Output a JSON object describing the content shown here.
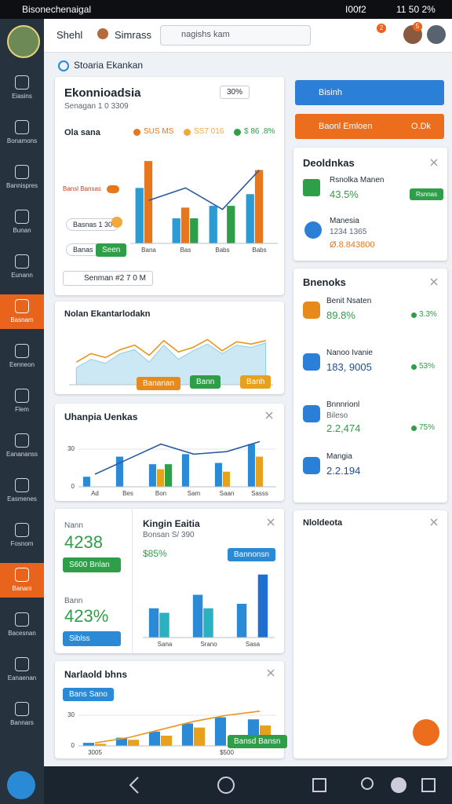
{
  "status_bar": {
    "app": "Bisonechenaigal",
    "battery": "I00f2",
    "time": "11 50 2%"
  },
  "header": {
    "title": "Shehl",
    "user": "Simrass",
    "search": "nagishs kam",
    "badges": [
      "2",
      "5"
    ]
  },
  "breadcrumb": "Stoaria Ekankan",
  "sidebar": [
    {
      "label": "Eiasins"
    },
    {
      "label": "Bonamons"
    },
    {
      "label": "Bannispres"
    },
    {
      "label": "Bunan"
    },
    {
      "label": "Eunann"
    },
    {
      "label": "Basnam",
      "active": true
    },
    {
      "label": "Eenneon"
    },
    {
      "label": "Flem"
    },
    {
      "label": "Eanananss"
    },
    {
      "label": "Easmenes"
    },
    {
      "label": "Fosnom"
    },
    {
      "label": "Banani",
      "active": true
    },
    {
      "label": "Bacesnan"
    },
    {
      "label": "Eanaenan"
    },
    {
      "label": "Bannars"
    }
  ],
  "card_a": {
    "title": "Ekonnioadsia",
    "subtitle": "Senagan 1 0 3309",
    "badge": "30%",
    "legend_title": "Ola sana",
    "legend": [
      {
        "label": "SUS MS",
        "color": "#e8761c"
      },
      {
        "label": "SS7 016",
        "color": "#f2a93b"
      },
      {
        "label": "$ 86 .8%",
        "color": "#2e9e48"
      }
    ],
    "rows": [
      "Bansl Bansas",
      "Basnas 1 30",
      "Banas"
    ],
    "row_button": "Seen",
    "footer": "Senman #2 7 0 M",
    "chart": {
      "type": "bar",
      "ylim": [
        0,
        100
      ],
      "categories": [
        "Bana",
        "Bas",
        "Babs",
        "Babs"
      ],
      "series": [
        {
          "color": "#2b9bd6",
          "values": [
            62,
            28,
            42,
            55
          ]
        },
        {
          "color": "#e8761c",
          "values": [
            92,
            40,
            0,
            82
          ]
        },
        {
          "color": "#2e9e48",
          "values": [
            0,
            28,
            42,
            0
          ]
        }
      ],
      "line": {
        "color": "#2c5aa0",
        "values": [
          48,
          62,
          38,
          82
        ]
      }
    }
  },
  "card_b": {
    "title": "Nolan Ekantarlodakn",
    "buttons": [
      "Bananan",
      "Bann",
      "Banh"
    ],
    "chart": {
      "type": "area",
      "ylim": [
        0,
        100
      ],
      "series": [
        {
          "color": "#8fcde8",
          "values": [
            30,
            45,
            38,
            55,
            62,
            40,
            70,
            45,
            60,
            72,
            55,
            70,
            66,
            74
          ]
        }
      ],
      "line": {
        "color": "#e8961c",
        "values": [
          40,
          55,
          48,
          62,
          70,
          52,
          78,
          58,
          66,
          80,
          60,
          76,
          72,
          78
        ]
      }
    }
  },
  "card_c": {
    "title": "Uhanpia Uenkas",
    "chart": {
      "type": "bar",
      "ylim": [
        0,
        40
      ],
      "yticks": [
        0,
        30
      ],
      "categories": [
        "Ad",
        "Bes",
        "Bon",
        "Sam",
        "Saan",
        "Sasss"
      ],
      "series": [
        {
          "color": "#2b8ad6",
          "values": [
            8,
            24,
            18,
            26,
            19,
            34
          ]
        },
        {
          "color": "#e8a11c",
          "values": [
            0,
            0,
            14,
            0,
            12,
            24
          ]
        },
        {
          "color": "#2e9e48",
          "values": [
            0,
            0,
            18,
            0,
            0,
            0
          ]
        }
      ],
      "line": {
        "color": "#2c5aa0",
        "values": [
          10,
          22,
          34,
          26,
          28,
          36
        ]
      }
    }
  },
  "card_d": {
    "kpis": [
      {
        "label": "Nann",
        "value": "4238",
        "button": "S600 Bnlan"
      },
      {
        "label": "Bann",
        "value": "423%",
        "button": "Siblss"
      }
    ],
    "title": "Kingin Eaitia",
    "subtitle": "Bonsan S/ 390",
    "value": "$85%",
    "button": "Bannonsn",
    "chart": {
      "type": "bar",
      "ylim": [
        0,
        60
      ],
      "categories": [
        "Sana",
        "Srano",
        "Sasa"
      ],
      "series": [
        {
          "color": "#2b8ad6",
          "values": [
            26,
            38,
            30
          ]
        },
        {
          "color": "#2bb0c0",
          "values": [
            22,
            26,
            0
          ]
        },
        {
          "color": "#1f6fd0",
          "values": [
            0,
            0,
            56
          ]
        }
      ]
    }
  },
  "card_e": {
    "title": "Narlaold bhns",
    "button": "Bans Sano",
    "green_button": "Bansd Bansn",
    "chart": {
      "type": "bar",
      "ylim": [
        0,
        40
      ],
      "yticks": [
        0,
        30
      ],
      "categories": [
        "3005",
        null,
        null,
        null,
        "$500",
        null
      ],
      "series": [
        {
          "color": "#2b8ad6",
          "values": [
            3,
            8,
            14,
            22,
            28,
            26
          ]
        },
        {
          "color": "#e8a11c",
          "values": [
            2,
            6,
            10,
            18,
            0,
            20
          ]
        }
      ],
      "line": {
        "color": "#e8961c",
        "values": [
          3,
          8,
          16,
          24,
          30,
          34
        ]
      }
    }
  },
  "right": {
    "primary": "Bisinh",
    "secondary": "Baonl Emloen",
    "secondary_value": "O.Dk",
    "deals": {
      "title": "Deoldnkas",
      "items": [
        {
          "name": "Rsnolka Manen",
          "value": "43.5%",
          "tag": "Rsnnas"
        },
        {
          "name": "Manesia",
          "sub": "1234 1365",
          "value": "Ø.8.843800"
        }
      ]
    },
    "orders": {
      "title": "Bnenoks",
      "items": [
        {
          "name": "Benit Nsaten",
          "value": "89.8%",
          "change": "3.3%"
        },
        {
          "name": "Nanoo Ivanie",
          "value": "183, 9005",
          "change": "53%"
        },
        {
          "name": "Bnnnrionl",
          "sub": "Bileso",
          "value": "2.2,474",
          "change": "75%"
        },
        {
          "name": "Mangia",
          "value": "2.2.194"
        }
      ]
    },
    "notes": {
      "title": "Nloldeota"
    }
  }
}
